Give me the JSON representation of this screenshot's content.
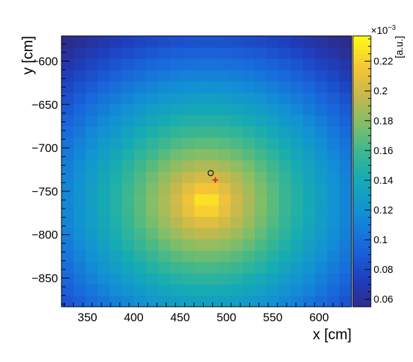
{
  "chart_data": {
    "type": "heatmap",
    "xlabel": "x [cm]",
    "ylabel": "y [cm]",
    "zlabel": "[a.u.]",
    "z_exponent_label": "×10",
    "z_exponent_power": "−3",
    "xlim": [
      322,
      635
    ],
    "ylim": [
      -883,
      -571
    ],
    "x_ticks": [
      350,
      400,
      450,
      500,
      550,
      600
    ],
    "x_tick_labels": [
      "350",
      "400",
      "450",
      "500",
      "550",
      "600"
    ],
    "y_ticks": [
      -600,
      -650,
      -700,
      -750,
      -800,
      -850
    ],
    "y_tick_labels": [
      "−600",
      "−650",
      "−700",
      "−750",
      "−800",
      "−850"
    ],
    "zlim": [
      0.055,
      0.237
    ],
    "z_ticks": [
      0.06,
      0.08,
      0.1,
      0.12,
      0.14,
      0.16,
      0.18,
      0.2,
      0.22
    ],
    "z_tick_labels": [
      "0.06",
      "0.08",
      "0.1",
      "0.12",
      "0.14",
      "0.16",
      "0.18",
      "0.2",
      "0.22"
    ],
    "grid": false,
    "colormap": "Parula (dark blue to yellow)",
    "peak_center": {
      "x": 478,
      "y": -762
    },
    "markers": [
      {
        "name": "circle",
        "x": 483,
        "y": -729,
        "color": "#000000"
      },
      {
        "name": "cross",
        "x": 488,
        "y": -737,
        "color": "#e8221d"
      }
    ]
  }
}
